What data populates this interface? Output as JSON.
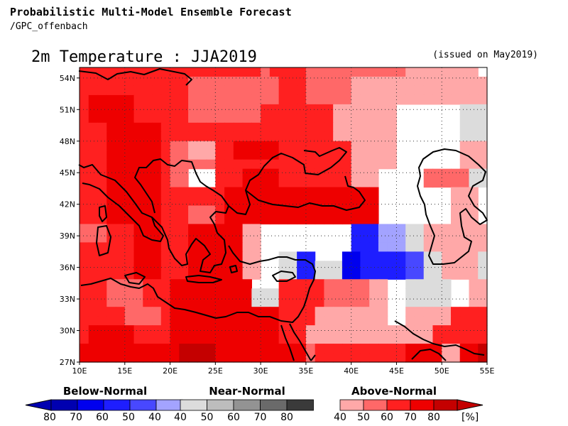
{
  "header": {
    "title": "Probabilistic Multi-Model Ensemble Forecast",
    "subtitle": "/GPC_offenbach"
  },
  "map": {
    "title": "2m Temperature : JJA2019",
    "issued": "(issued on May2019)",
    "lon_range": [
      10,
      55
    ],
    "lat_range": [
      27,
      55
    ],
    "lon_ticks": [
      "10E",
      "15E",
      "20E",
      "25E",
      "30E",
      "35E",
      "40E",
      "45E",
      "50E",
      "55E"
    ],
    "lat_ticks": [
      "54N",
      "51N",
      "48N",
      "45N",
      "42N",
      "39N",
      "36N",
      "33N",
      "30N",
      "27N"
    ],
    "grid_lines": "dotted",
    "coastlines": true
  },
  "legend": {
    "below": {
      "title": "Below-Normal",
      "ticks": [
        "80",
        "70",
        "60",
        "50",
        "40"
      ],
      "colors": [
        "#0000b0",
        "#0000ee",
        "#1e1eff",
        "#4848ff",
        "#a3a3ff"
      ]
    },
    "near": {
      "title": "Near-Normal",
      "ticks": [
        "40",
        "50",
        "60",
        "70",
        "80"
      ],
      "colors": [
        "#dcdcdc",
        "#bdbdbd",
        "#939393",
        "#6a6a6a",
        "#3a3a3a"
      ]
    },
    "above": {
      "title": "Above-Normal",
      "ticks": [
        "40",
        "50",
        "60",
        "70",
        "80"
      ],
      "colors": [
        "#ffa8a8",
        "#ff6868",
        "#ff2020",
        "#ee0000",
        "#c40000"
      ]
    },
    "unit": "[%]"
  },
  "field": {
    "codes": "w=none A1..A5=above 40/50/60/70/80, B1..B5=below 40..80, N1..N5=near 40..80",
    "rows": [
      "A3 A3 A3 A3 A3 A3 A3 A3 A3 A3 A3 A3 A3 A3 A3 A3 A3 A3 A3 A3 A2 A3 A3 A3 A3 A2 A2 A2 A2 A2 A2 A2 A2 A2 A2 A2 A1 A1 A1 A1 A1 A1 A1 A1 w",
      "A3 A3 A3 A3 A3 A3 A3 A3 A3 A3 A3 A3 A2 A2 A2 A2 A2 A2 A2 A2 A2 A2 A3 A3 A3 A2 A2 A2 A2 A2 A1 A1 A1 A1 A1 A1 A1 A1 A1 A1 A1 A1 A1 A1 A1",
      "A3 A3 A3 A3 A3 A3 A3 A3 A3 A3 A3 A3 A2 A2 A2 A2 A2 A2 A2 A2 A2 A2 A3 A3 A3 A2 A2 A2 A2 A2 A1 A1 A1 A1 A1 A1 A1 A1 A1 A1 A1 A1 A1 A1 A1",
      "A3 A4 A4 A4 A4 A4 A3 A3 A3 A3 A3 A3 A2 A2 A2 A2 A2 A2 A2 A2 A2 A2 A3 A3 A3 A2 A2 A2 A2 A2 A1 A1 A1 A1 A1 A1 A1 A1 A1 A1 A1 A1 A1 A1 A1",
      "A3 A4 A4 A4 A4 A4 A3 A3 A3 A3 A3 A3 A2 A2 A2 A2 A2 A2 A2 A2 A3 A3 A3 A3 A3 A3 A3 A3 A1 A1 A1 A1 A1 A1 A1 w w w w w w w N1 N1 N1",
      "A3 A4 A4 A4 A4 A4 A3 A3 A3 A3 A3 A3 A2 A2 A2 A2 A2 A2 A2 A2 A3 A3 A3 A3 A3 A3 A3 A3 A1 A1 A1 A1 A1 A1 A1 w w w w w w w N1 N1 N1",
      "A3 A3 A3 A4 A4 A4 A4 A4 A4 A3 A3 A3 A3 A3 A3 A3 A3 A3 A3 A3 A3 A3 A3 A3 A3 A3 A3 A3 A1 A1 A1 A1 A1 A1 A1 w w w w w w w N1 N1 N1",
      "A3 A3 A3 A4 A4 A4 A4 A4 A4 A3 A3 A3 A3 A3 A3 A3 A3 A3 A3 A3 A3 A3 A3 A3 A3 A3 A3 A3 A1 A1 A1 A1 A1 A1 A1 w w w w w w w N1 N1 N1",
      "A3 A3 A3 A4 A4 A4 A4 A4 A4 A3 A2 A2 A1 A1 A1 A3 A3 A4 A4 A4 A4 A4 A3 A3 A3 A3 A3 A3 A3 A3 A1 A1 A1 A1 A1 w w w w w w w A1 A1 A1",
      "A3 A3 A3 A4 A4 A4 A4 A4 A4 A3 A2 A2 A1 A1 A1 A3 A3 A4 A4 A4 A4 A4 A3 A3 A3 A3 A3 A3 A3 A3 A1 A1 A1 A1 A1 w w w w w w w A1 A1 A1",
      "A3 A3 A3 A4 A4 A4 A4 A4 A4 A3 A2 A2 A2 A2 A2 A3 A3 A3 A3 A3 A3 A3 A3 A3 A3 A3 A3 A3 A3 A3 A1 A1 A1 A1 A1 w w w w w w w A1 A1 A1",
      "A3 A3 A3 A4 A4 A4 A4 A4 A4 A3 A2 A2 w w w A3 A3 A3 A4 A4 A4 A4 A3 A3 A3 A3 A3 A3 A3 A3 A1 A1 A1 w w w w w A2 A2 A2 A2 A2 N1 N1",
      "A3 A3 A3 A4 A4 A4 A4 A4 A4 A3 A2 A2 w w w A3 A3 A3 A4 A4 A4 A4 A3 A3 A3 A3 A3 A3 A3 A3 A1 A1 A1 w w w w w A2 A2 A2 A2 A2 N1 N1",
      "A3 A3 A3 A4 A4 A4 A4 A4 A4 A3 A3 A3 A3 A3 A3 A3 A4 A4 A4 A4 A4 A4 A4 A4 A4 A4 A4 A4 A4 A4 A4 A4 A4 w w w w w w w w A1 A1 A1 w",
      "A3 A3 A3 A4 A4 A4 A4 A4 A4 A3 A3 A3 A3 A3 A3 A3 A4 A4 A4 A4 A4 A4 A4 A4 A4 A4 A4 A4 A4 A4 A4 A4 A4 w w w w w w w w A1 A1 A1 w",
      "A3 A3 A3 A4 A4 A4 A4 A4 A4 A3 A3 A3 A2 A2 A2 A3 A4 A4 A4 A4 A4 A4 A4 A4 A4 A4 A4 A4 A4 A4 A4 A4 A4 w w w w w w w w A1 A1 A1 w",
      "A3 A3 A3 A4 A4 A4 A4 A4 A4 A3 A3 A3 A2 A2 A2 A3 A4 A4 A4 A4 A4 A4 A4 A4 A4 A4 A4 A4 A4 A4 A4 A4 A4 w w w w w w w w A1 A1 A1 w",
      "A2 A2 A2 A3 A3 A3 A4 A4 A4 A3 A3 A3 A4 A4 A4 A4 A4 A4 A1 A1 w w w w w w w w w w B3 B3 B3 B1 B1 B1 N1 N1 A1 A1 A1 A1 A1 A1 A1",
      "A2 A2 A2 A3 A3 A3 A4 A4 A4 A3 A3 A3 A4 A4 A4 A4 A4 A4 A1 A1 w w w w w w w w w w B3 B3 B3 B1 B1 B1 N1 N1 A1 A1 A1 A1 A1 A1 A1",
      "A3 A3 A3 A3 A3 A3 A4 A4 A4 A3 A3 A3 A4 A4 A4 A4 A4 A4 A1 A1 w w w w w w w w w w B3 B3 B3 B1 B1 B1 N1 N1 A1 A1 A1 A1 A1 A1 A1",
      "A3 A3 A3 A3 A3 A3 A4 A4 A4 A3 A3 A3 A4 A4 A4 A4 A4 A4 A1 A1 w w N1 N1 B3 B3 w w w B4 B4 B3 B3 B3 B3 B3 B2 B2 N1 N1 A1 A1 A1 A1 N1",
      "A3 A3 A3 A3 A3 A3 A4 A4 A4 A3 A3 A3 A4 A4 A4 A4 A4 A4 A1 A1 w w N1 N1 B3 B3 N1 N1 N1 B4 B4 B3 B3 B3 B3 B3 B2 B2 N1 N1 A1 A1 A1 A1 N1",
      "A3 A3 A3 A3 A3 A3 A4 A4 A4 A3 A3 A3 A4 A4 A4 A4 A4 A4 A1 A1 w w N1 N1 B3 B3 N1 N1 N1 B4 B4 B3 B3 B3 B3 B3 B2 B2 N1 N1 A1 A1 A1 A1 N1",
      "A3 A3 A3 A2 A2 A2 A2 A3 A3 A3 A4 A4 A4 A4 A4 A4 A4 A4 A4 w w w A3 A3 A3 A3 A3 A2 A2 A2 A2 A2 A1 A1 w w N1 N1 N1 N1 N1 w w A1 A1",
      "A3 A3 A3 A2 A2 A2 A2 A3 A3 A3 A4 A4 A4 A4 A4 A4 A4 A4 A4 N1 N1 N1 A3 A3 A3 A3 A3 A2 A2 A2 A2 A2 A1 A1 w w N1 N1 N1 N1 N1 w w A1 A1",
      "A3 A3 A3 A2 A2 A2 A2 A3 A3 A3 A4 A4 A4 A4 A4 A4 A4 A4 A4 N1 N1 N1 A3 A3 A3 A3 A3 A2 A2 A2 A2 A2 A1 A1 w w N1 N1 N1 N1 N1 w w A1 A1",
      "A3 A3 A3 A3 A3 A2 A2 A2 A2 A3 A4 A4 A4 A4 A4 A4 A4 A4 A4 A4 A4 A4 A3 A3 A3 A3 A1 A1 A1 A1 A1 A1 A1 A1 w w A1 A1 A1 A1 A1 A3 A3 A3 A3",
      "A3 A3 A3 A3 A3 A2 A2 A2 A2 A3 A4 A4 A4 A4 A4 A4 A4 A4 A4 A4 A4 A4 A3 A3 A3 A3 A1 A1 A1 A1 A1 A1 A1 A1 w w A1 A1 A1 A1 A1 A3 A3 A3 A3",
      "A3 A4 A4 A4 A4 A4 A3 A3 A3 A3 A4 A4 A4 A4 A4 A4 A4 A4 A4 A4 A4 A4 A3 A3 A3 A1 A1 A1 A1 A1 A1 A1 A1 A1 A1 A1 A1 A1 A1 A3 A3 A3 A3 A3 A3",
      "A3 A4 A4 A4 A4 A4 A3 A3 A3 A3 A4 A4 A4 A4 A4 A4 A4 A4 A4 A4 A4 A4 A3 A3 A3 A1 A1 A1 A1 A1 A1 A1 A1 A1 A1 A1 A1 A1 A1 A3 A3 A3 A3 A3 A3",
      "A4 A4 A4 A4 A4 A4 A4 A4 A4 A4 A4 A5 A5 A5 A5 A4 A4 A4 A4 A4 A4 A4 A4 A4 A4 A2 A3 A3 A3 A3 A3 A3 A3 A3 A3 A3 A4 A4 A4 A4 A1 A1 A4 A4 A5",
      "A4 A4 A4 A4 A4 A4 A4 A4 A4 A4 A4 A5 A5 A5 A5 A4 A4 A4 A4 A4 A4 A4 A4 A4 A4 A2 A3 A3 A3 A3 A3 A3 A3 A3 A3 A3 A4 A4 A4 A4 A1 A1 A4 A4 A5"
    ]
  }
}
